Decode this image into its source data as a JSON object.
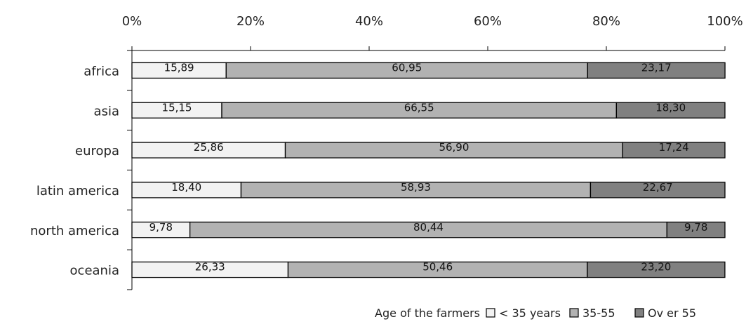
{
  "chart_data": {
    "type": "bar",
    "orientation": "horizontal",
    "stacked": "percent",
    "categories": [
      "africa",
      "asia",
      "europa",
      "latin america",
      "north america",
      "oceania"
    ],
    "series": [
      {
        "name": "< 35 years",
        "color": "#f2f2f2",
        "values": [
          15.89,
          15.15,
          25.86,
          18.4,
          9.78,
          26.33
        ],
        "labels": [
          "15,89",
          "15,15",
          "25,86",
          "18,40",
          "9,78",
          "26,33"
        ]
      },
      {
        "name": "35-55",
        "color": "#b2b2b2",
        "values": [
          60.95,
          66.55,
          56.9,
          58.93,
          80.44,
          50.46
        ],
        "labels": [
          "60,95",
          "66,55",
          "56,90",
          "58,93",
          "80,44",
          "50,46"
        ]
      },
      {
        "name": "Over 55",
        "color": "#808080",
        "values": [
          23.17,
          18.3,
          17.24,
          22.67,
          9.78,
          23.2
        ],
        "labels": [
          "23,17",
          "18,30",
          "17,24",
          "22,67",
          "9,78",
          "23,20"
        ]
      }
    ],
    "xlim": [
      0,
      100
    ],
    "xticks": [
      "0%",
      "20%",
      "40%",
      "60%",
      "80%",
      "100%"
    ],
    "x_axis_position": "top",
    "legend_title": "Age of the farmers",
    "legend_entries": [
      "< 35 years",
      "35-55",
      "Ov er 55"
    ],
    "legend_position": "bottom-right",
    "grid": false
  }
}
